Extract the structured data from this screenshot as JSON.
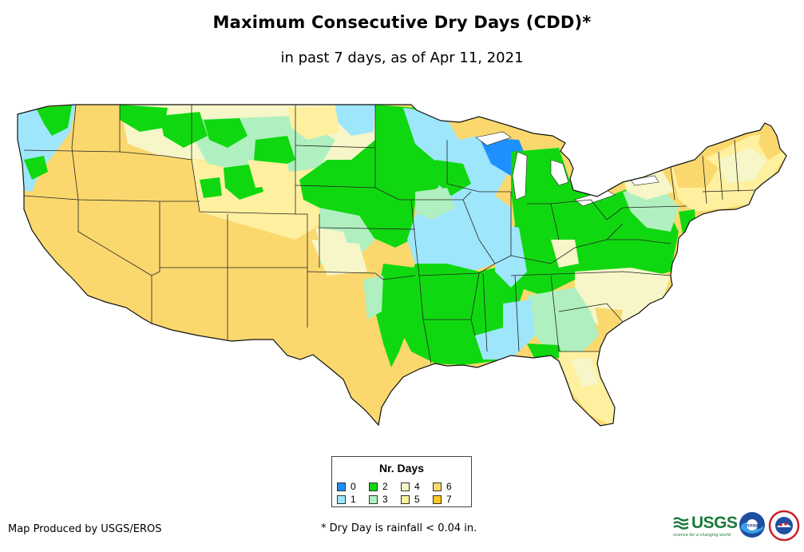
{
  "title": "Maximum Consecutive Dry Days (CDD)*",
  "subtitle": "in past 7 days, as of Apr 11, 2021",
  "legend": {
    "title": "Nr. Days",
    "items": [
      {
        "label": "0",
        "color": "#1e90ff"
      },
      {
        "label": "1",
        "color": "#9ee6fb"
      },
      {
        "label": "2",
        "color": "#10d810"
      },
      {
        "label": "3",
        "color": "#b0f0c0"
      },
      {
        "label": "4",
        "color": "#f6f6c8"
      },
      {
        "label": "5",
        "color": "#fff0a0"
      },
      {
        "label": "6",
        "color": "#fad86e"
      },
      {
        "label": "7",
        "color": "#ffc81e"
      }
    ]
  },
  "credit": "Map Produced by USGS/EROS",
  "footnote": "* Dry Day is rainfall < 0.04 in.",
  "logos": {
    "usgs": "USGS",
    "usgs_tagline": "science for a changing world",
    "noaa": "noaa"
  }
}
